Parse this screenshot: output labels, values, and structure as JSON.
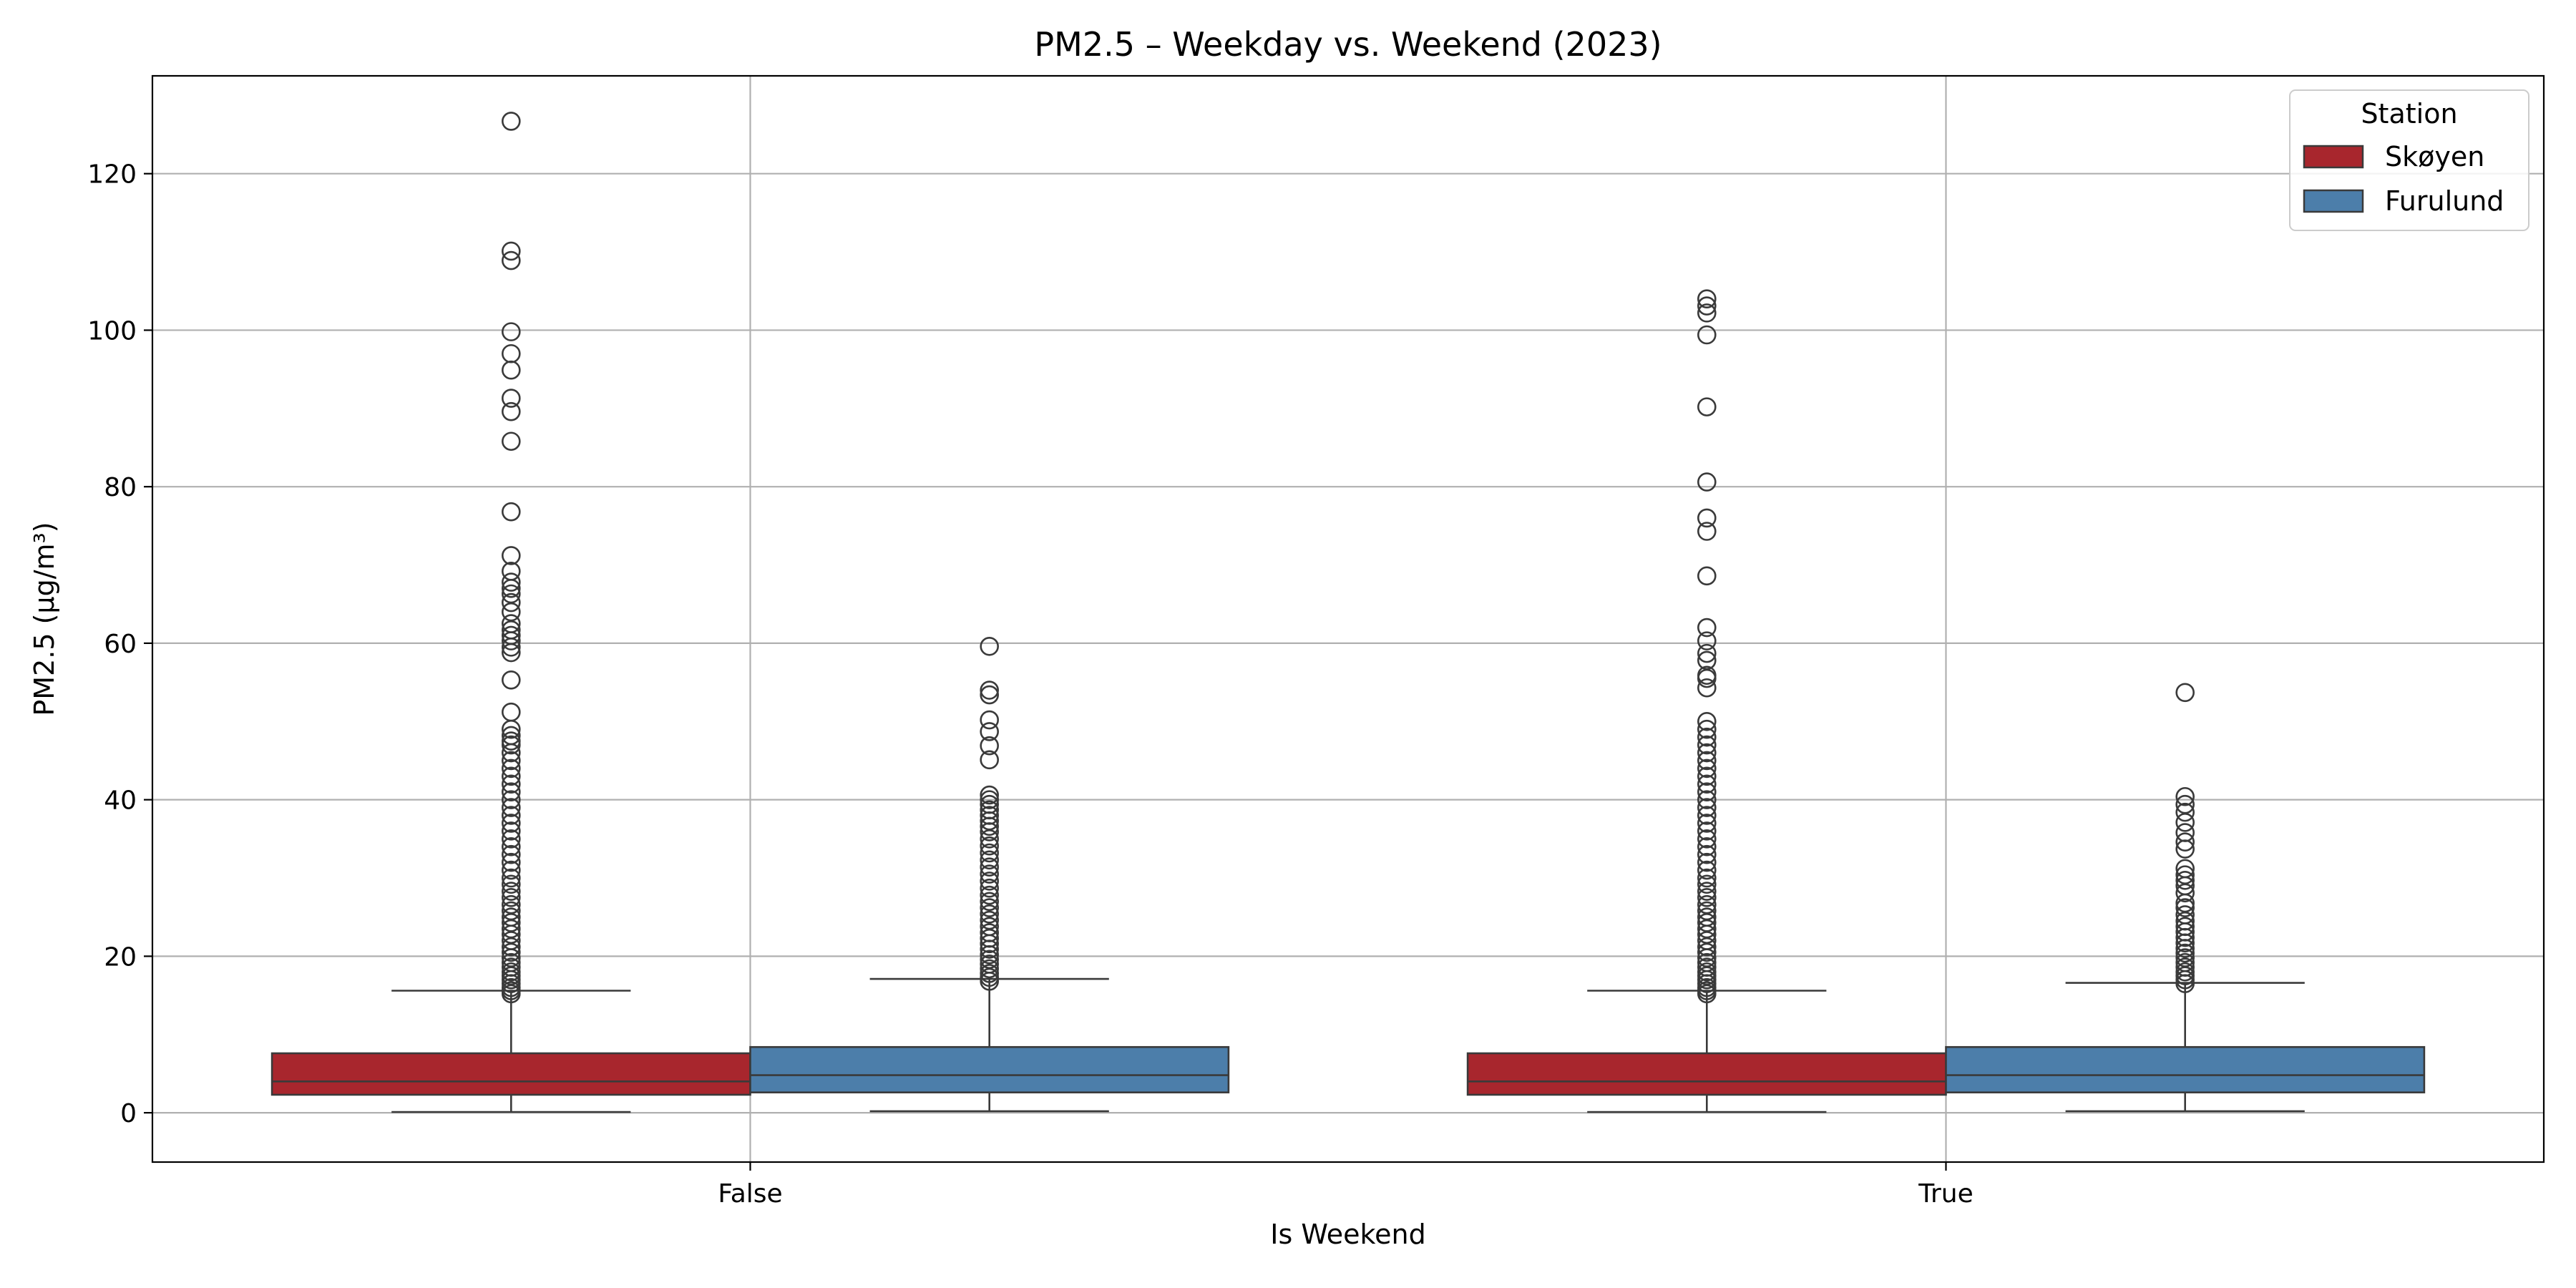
{
  "chart_data": {
    "type": "box",
    "title": "PM2.5 – Weekday vs. Weekend (2023)",
    "xlabel": "Is Weekend",
    "ylabel": "PM2.5 (µg/m³)",
    "categories": [
      "False",
      "True"
    ],
    "ylim": [
      -6.3,
      132.5
    ],
    "yticks": [
      0,
      20,
      40,
      60,
      80,
      100,
      120
    ],
    "grid": true,
    "legend": {
      "title": "Station",
      "placement": "top-right"
    },
    "series": [
      {
        "name": "Skøyen",
        "color": "#A8262D",
        "boxes": [
          {
            "category": "False",
            "whisker_low": 0.1,
            "q1": 2.3,
            "median": 4.0,
            "q3": 7.6,
            "whisker_high": 15.6,
            "outliers": [
              15.2,
              15.6,
              16.0,
              16.5,
              17.0,
              17.5,
              18.0,
              18.6,
              19.2,
              19.8,
              20.5,
              21.2,
              22.0,
              22.8,
              23.5,
              24.3,
              25.0,
              25.8,
              26.6,
              27.5,
              28.3,
              29.2,
              30.0,
              31.0,
              32.0,
              33.0,
              34.0,
              35.0,
              36.0,
              37.0,
              38.0,
              39.0,
              40.0,
              41.0,
              42.0,
              43.0,
              44.0,
              45.0,
              46.0,
              47.0,
              47.5,
              48.2,
              49.0,
              51.2,
              55.3,
              58.8,
              59.5,
              60.3,
              61.0,
              61.7,
              62.5,
              64.0,
              65.2,
              66.3,
              67.0,
              67.8,
              69.2,
              71.2,
              76.8,
              85.8,
              89.6,
              91.3,
              94.9,
              97.0,
              99.8,
              108.9,
              110.1,
              126.7
            ]
          },
          {
            "category": "True",
            "whisker_low": 0.1,
            "q1": 2.3,
            "median": 4.0,
            "q3": 7.6,
            "whisker_high": 15.6,
            "outliers": [
              15.2,
              15.6,
              16.0,
              16.5,
              17.0,
              17.5,
              18.0,
              18.6,
              19.2,
              19.8,
              20.5,
              21.2,
              22.0,
              22.8,
              23.5,
              24.3,
              25.0,
              25.8,
              26.6,
              27.5,
              28.3,
              29.2,
              30.0,
              31.0,
              32.0,
              33.0,
              34.0,
              35.0,
              36.0,
              37.0,
              38.0,
              39.0,
              40.0,
              41.0,
              42.0,
              43.0,
              44.0,
              45.0,
              46.0,
              47.0,
              48.0,
              49.0,
              50.0,
              54.3,
              55.5,
              55.9,
              57.8,
              58.7,
              60.3,
              62.0,
              68.6,
              74.3,
              76.0,
              80.6,
              90.2,
              99.4,
              102.2,
              103.1,
              104.0
            ]
          }
        ]
      },
      {
        "name": "Furulund",
        "color": "#4C7EAA",
        "boxes": [
          {
            "category": "False",
            "whisker_low": 0.2,
            "q1": 2.6,
            "median": 4.8,
            "q3": 8.4,
            "whisker_high": 17.1,
            "outliers": [
              16.8,
              17.3,
              17.8,
              18.4,
              19.0,
              19.6,
              20.2,
              20.9,
              21.6,
              22.3,
              23.0,
              23.8,
              24.6,
              25.4,
              26.2,
              27.0,
              27.8,
              28.7,
              29.6,
              30.5,
              31.4,
              32.3,
              33.2,
              34.1,
              35.0,
              35.9,
              36.6,
              37.3,
              38.0,
              38.7,
              39.4,
              40.0,
              40.6,
              45.1,
              46.9,
              48.7,
              50.2,
              53.4,
              54.0,
              59.6
            ]
          },
          {
            "category": "True",
            "whisker_low": 0.2,
            "q1": 2.6,
            "median": 4.8,
            "q3": 8.4,
            "whisker_high": 16.6,
            "outliers": [
              16.5,
              17.0,
              17.5,
              18.0,
              18.6,
              19.2,
              19.8,
              20.4,
              21.0,
              21.7,
              22.4,
              23.1,
              23.8,
              24.5,
              25.3,
              26.2,
              26.8,
              28.1,
              29.0,
              29.7,
              30.4,
              31.2,
              33.7,
              34.6,
              35.8,
              37.1,
              38.4,
              39.4,
              40.4,
              53.7
            ]
          }
        ]
      }
    ]
  }
}
